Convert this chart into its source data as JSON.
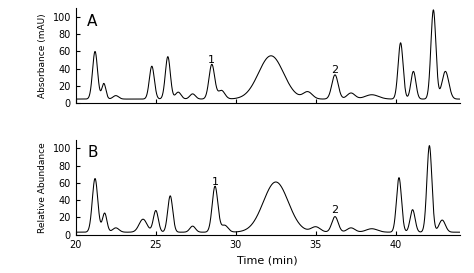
{
  "xlim": [
    20,
    44
  ],
  "ylim_A": [
    0,
    110
  ],
  "ylim_B": [
    0,
    110
  ],
  "yticks_A": [
    0,
    20,
    40,
    60,
    80,
    100
  ],
  "yticks_B": [
    0,
    20,
    40,
    60,
    80,
    100
  ],
  "xticks": [
    20,
    25,
    30,
    35,
    40
  ],
  "xlabel": "Time (min)",
  "ylabel_A": "Absorbance (mAU)",
  "ylabel_B": "Relative Abundance",
  "label_A": "A",
  "label_B": "B",
  "ann1_x_A": 28.5,
  "ann1_y_A": 42,
  "ann2_x_A": 36.2,
  "ann2_y_A": 30,
  "ann1_x_B": 28.7,
  "ann1_y_B": 52,
  "ann2_x_B": 36.2,
  "ann2_y_B": 20,
  "line_color": "#000000",
  "bg_color": "#ffffff"
}
